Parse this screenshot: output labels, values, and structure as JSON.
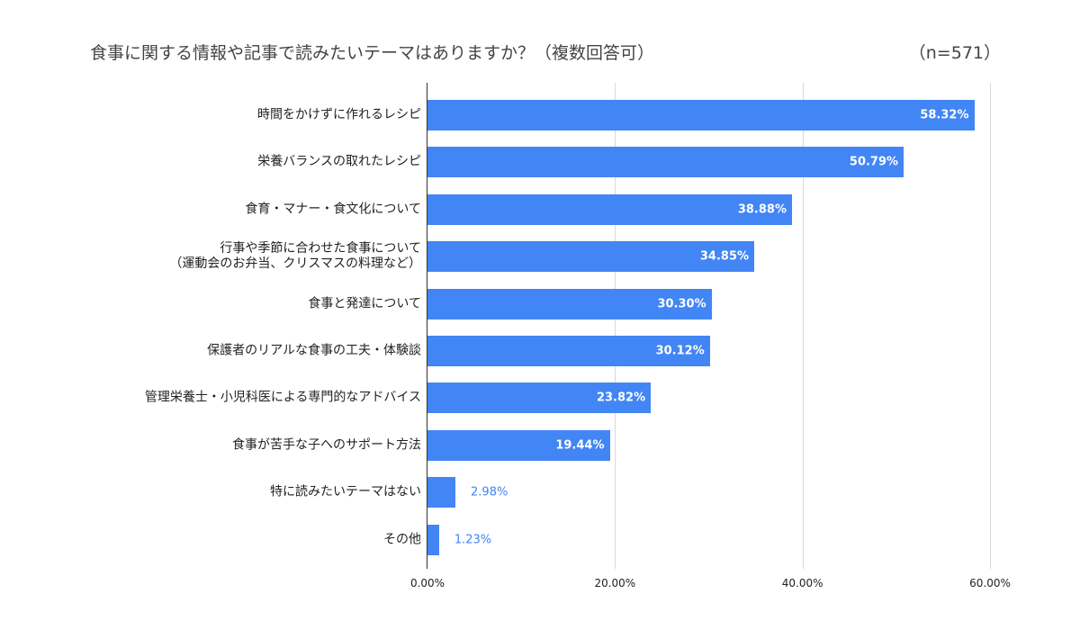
{
  "chart_data": {
    "type": "bar",
    "orientation": "horizontal",
    "title": "食事に関する情報や記事で読みたいテーマはありますか？（複数回答可）",
    "subtitle": "（n=571）",
    "categories": [
      "時間をかけずに作れるレシピ",
      "栄養バランスの取れたレシピ",
      "食育・マナー・食文化について",
      "行事や季節に合わせた食事について\n（運動会のお弁当、クリスマスの料理など）",
      "食事と発達について",
      "保護者のリアルな食事の工夫・体験談",
      "管理栄養士・小児科医による専門的なアドバイス",
      "食事が苦手な子へのサポート方法",
      "特に読みたいテーマはない",
      "その他"
    ],
    "values": [
      58.32,
      50.79,
      38.88,
      34.85,
      30.3,
      30.12,
      23.82,
      19.44,
      2.98,
      1.23
    ],
    "data_labels": [
      "58.32%",
      "50.79%",
      "38.88%",
      "34.85%",
      "30.30%",
      "30.12%",
      "23.82%",
      "19.44%",
      "2.98%",
      "1.23%"
    ],
    "xlim": [
      0,
      60
    ],
    "x_ticks": [
      0,
      20,
      40,
      60
    ],
    "x_tick_labels": [
      "0.00%",
      "20.00%",
      "40.00%",
      "60.00%"
    ],
    "grid": true,
    "legend": "none",
    "bar_color": "#4285f4"
  }
}
